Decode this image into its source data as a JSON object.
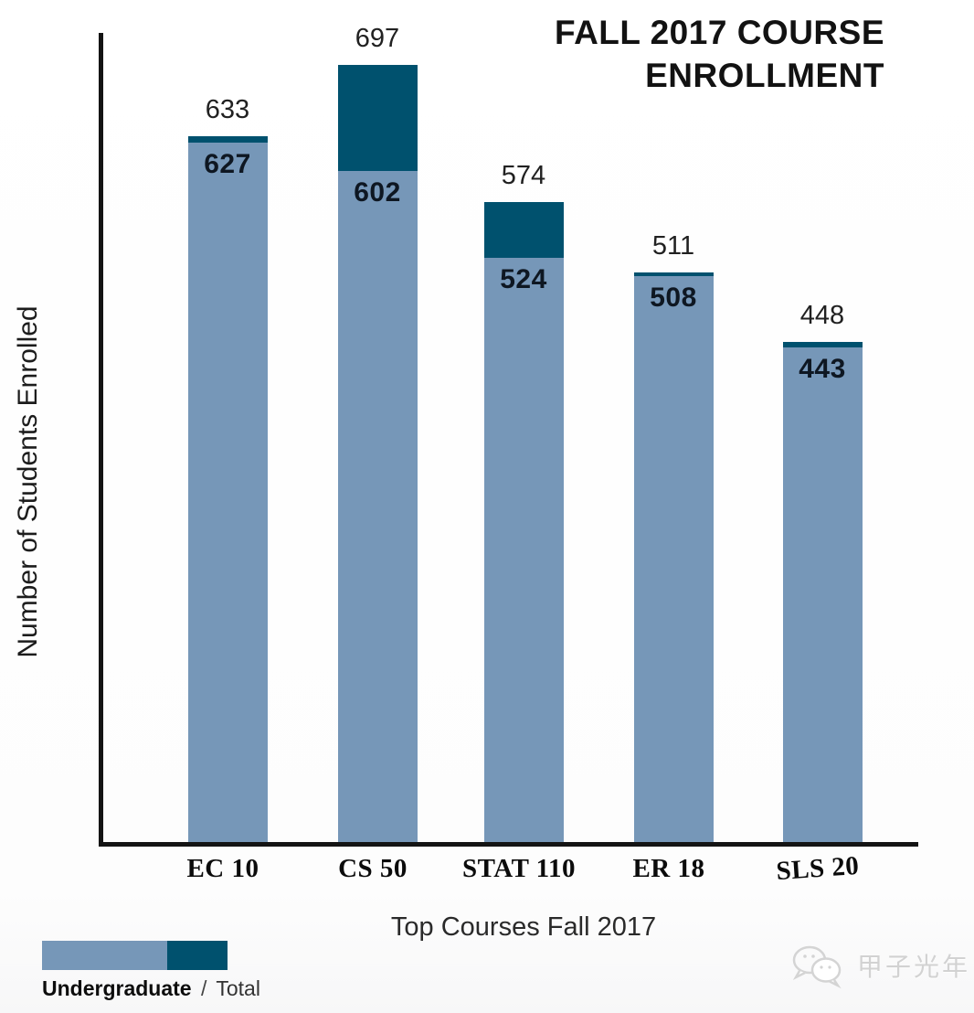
{
  "header": {
    "title_line1": "FALL 2017 COURSE",
    "title_line2": "ENROLLMENT"
  },
  "chart_data": {
    "type": "bar",
    "title": "FALL 2017 COURSE ENROLLMENT",
    "categories": [
      "EC 10",
      "CS 50",
      "STAT 110",
      "ER 18",
      "SLS 20"
    ],
    "series": [
      {
        "name": "Undergraduate",
        "color": "#7697b8",
        "values": [
          627,
          602,
          524,
          508,
          443
        ]
      },
      {
        "name": "Total",
        "color": "#00516e",
        "values": [
          633,
          697,
          574,
          511,
          448
        ]
      }
    ],
    "xlabel": "Top Courses Fall 2017",
    "ylabel": "Number of Students Enrolled",
    "ylim": [
      0,
      730
    ],
    "grid": false,
    "y_ticks": "none",
    "legend_position": "bottom-left",
    "value_labels": {
      "total": "above each bar",
      "undergraduate": "bold, inside bar below total segment"
    }
  },
  "legend": {
    "undergraduate": "Undergraduate",
    "separator": "/",
    "total": "Total"
  },
  "watermark": {
    "icon": "wechat-icon",
    "text": "甲子光年"
  }
}
